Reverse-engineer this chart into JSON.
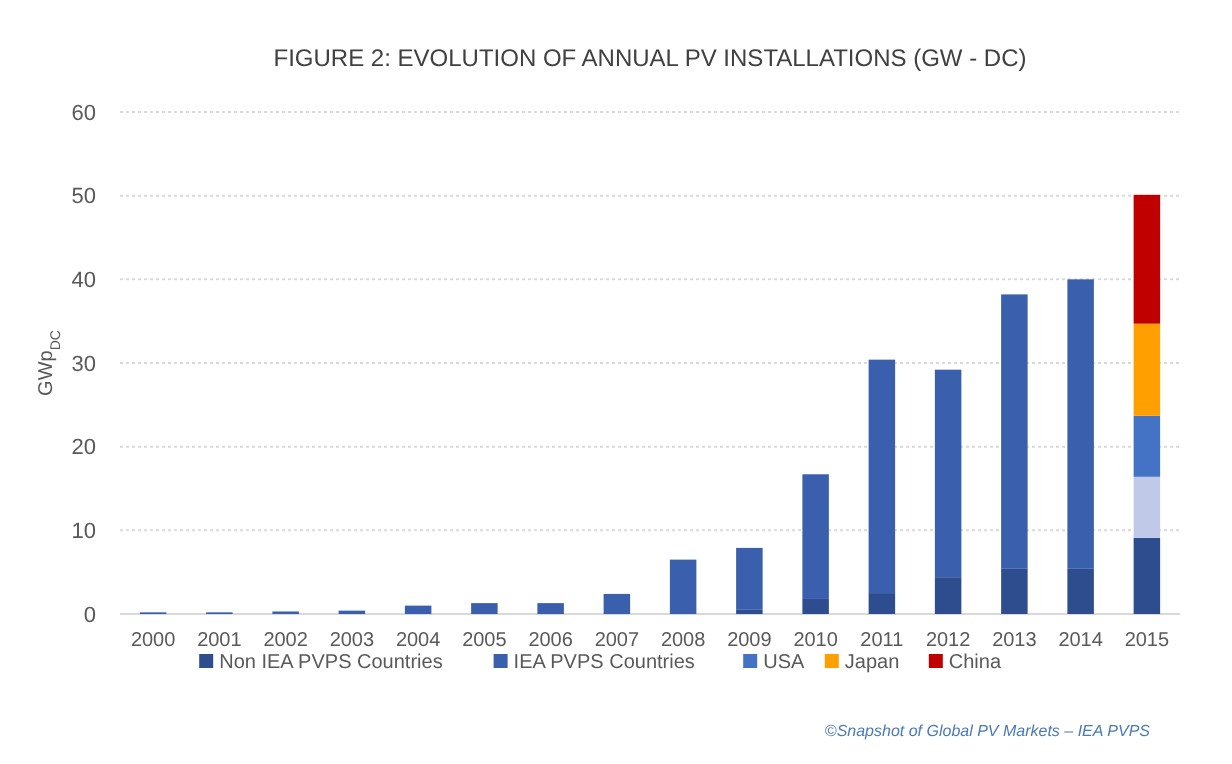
{
  "chart_data": {
    "type": "bar",
    "stacked": true,
    "title": "FIGURE 2: EVOLUTION OF ANNUAL PV INSTALLATIONS (GW - DC)",
    "ylabel": "GWp$_{DC}$",
    "categories": [
      "2000",
      "2001",
      "2002",
      "2003",
      "2004",
      "2005",
      "2006",
      "2007",
      "2008",
      "2009",
      "2010",
      "2011",
      "2012",
      "2013",
      "2014",
      "2015"
    ],
    "series": [
      {
        "name": "Non IEA PVPS Countries",
        "color": "#2e4d8f",
        "values": [
          0,
          0,
          0,
          0,
          0,
          0,
          0,
          0,
          0,
          0.5,
          1.8,
          2.5,
          4.4,
          5.4,
          5.4,
          9.1
        ]
      },
      {
        "name": "IEA PVPS Countries",
        "color": "#3a5fad",
        "colors": [
          "#3a5fad",
          "#3a5fad",
          "#3a5fad",
          "#3a5fad",
          "#3a5fad",
          "#3a5fad",
          "#3a5fad",
          "#3a5fad",
          "#3a5fad",
          "#3a5fad",
          "#3a5fad",
          "#3a5fad",
          "#3a5fad",
          "#3a5fad",
          "#3a5fad",
          "#c0cae8"
        ],
        "values": [
          0.2,
          0.2,
          0.3,
          0.4,
          1.0,
          1.3,
          1.3,
          2.4,
          6.5,
          7.4,
          14.9,
          27.9,
          24.8,
          32.8,
          34.6,
          7.3
        ]
      },
      {
        "name": "USA",
        "color": "#4472c4",
        "values": [
          null,
          null,
          null,
          null,
          null,
          null,
          null,
          null,
          null,
          null,
          null,
          null,
          null,
          null,
          null,
          7.3
        ]
      },
      {
        "name": "Japan",
        "color": "#ffa000",
        "values": [
          null,
          null,
          null,
          null,
          null,
          null,
          null,
          null,
          null,
          null,
          null,
          null,
          null,
          null,
          null,
          11.0
        ]
      },
      {
        "name": "China",
        "color": "#c00000",
        "values": [
          null,
          null,
          null,
          null,
          null,
          null,
          null,
          null,
          null,
          null,
          null,
          null,
          null,
          null,
          null,
          15.4
        ]
      }
    ],
    "ylim": [
      0,
      60
    ],
    "yticks": [
      0,
      10,
      20,
      30,
      40,
      50,
      60
    ],
    "grid": "y",
    "legend": "bottom",
    "annotations": [
      "©Snapshot of Global PV Markets – IEA PVPS"
    ]
  }
}
